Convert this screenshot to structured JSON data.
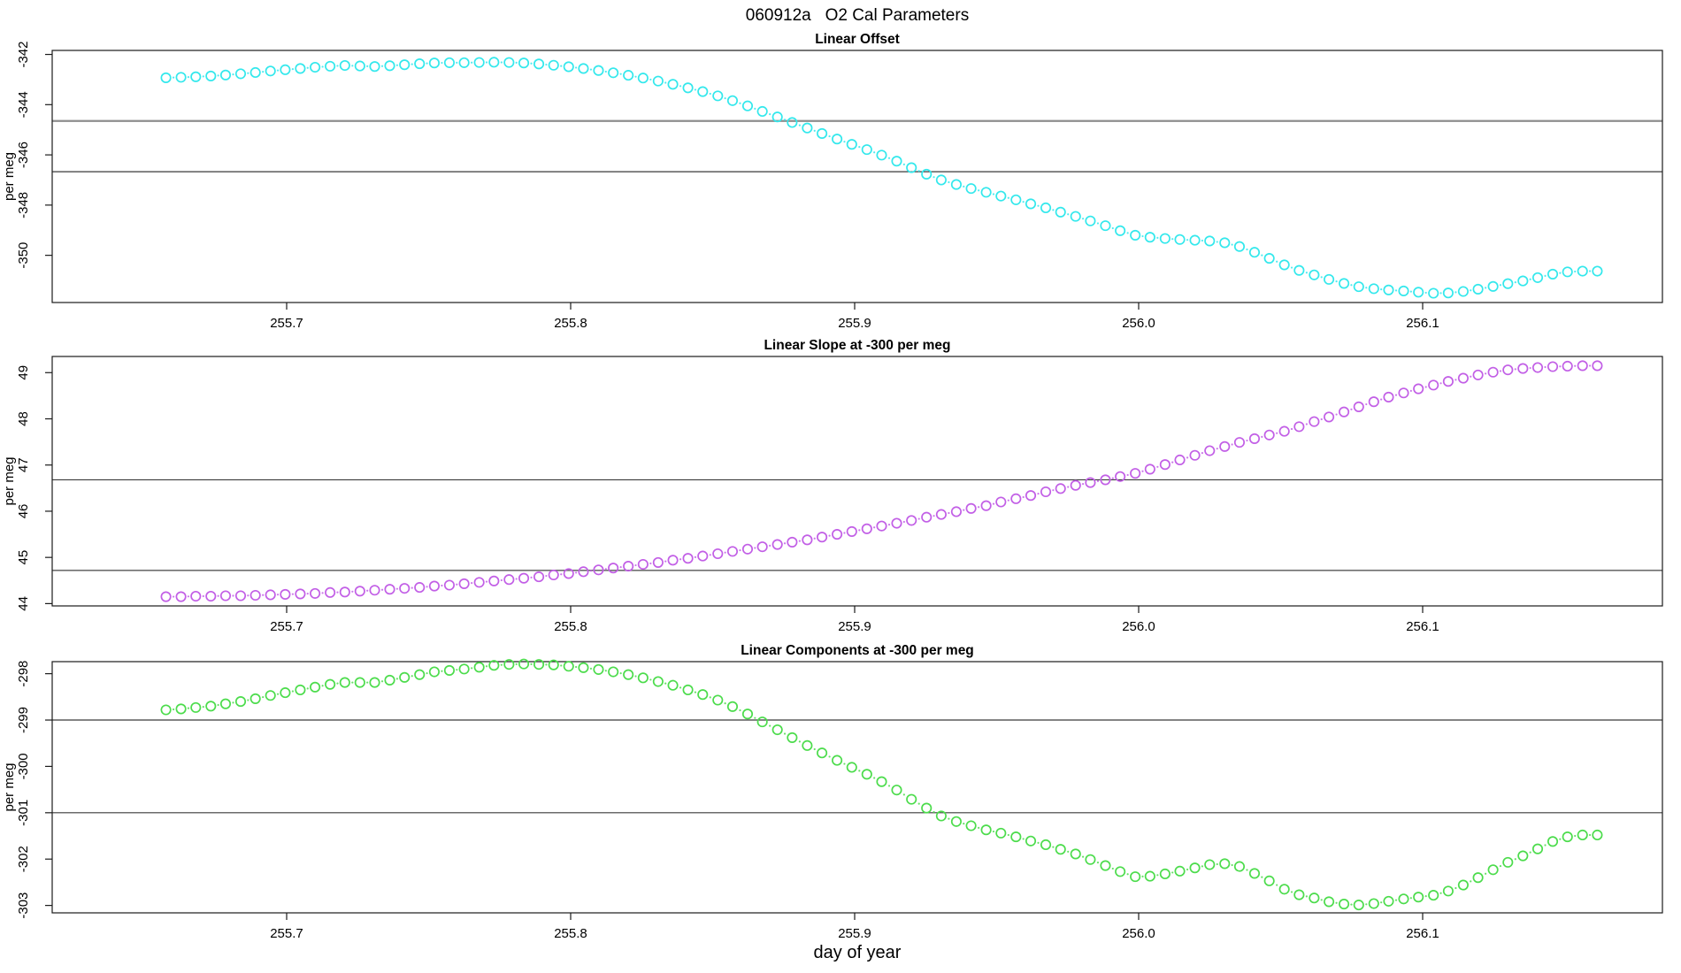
{
  "title": "060912a   O2 Cal Parameters",
  "chart_data": {
    "type": "scatter",
    "subtype": "three-stacked-panels",
    "x_label": "day of year",
    "marker": "open-circle",
    "connector": "dotted",
    "grid": "off",
    "x_ticks": [
      255.7,
      255.8,
      255.9,
      256.0,
      256.1
    ],
    "x_tick_labels": [
      "255.7",
      "255.8",
      "255.9",
      "256.0",
      "256.1"
    ],
    "xlim": [
      255.6175,
      256.1845
    ],
    "x_days": [
      255.6575,
      255.6628,
      255.668,
      255.6733,
      255.6785,
      255.6838,
      255.689,
      255.6943,
      255.6995,
      255.7048,
      255.71,
      255.7153,
      255.7205,
      255.7258,
      255.731,
      255.7363,
      255.7415,
      255.7468,
      255.752,
      255.7573,
      255.7625,
      255.7678,
      255.773,
      255.7783,
      255.7835,
      255.7888,
      255.794,
      255.7993,
      255.8045,
      255.8098,
      255.815,
      255.8203,
      255.8255,
      255.8308,
      255.836,
      255.8413,
      255.8465,
      255.8518,
      255.857,
      255.8623,
      255.8675,
      255.8728,
      255.878,
      255.8833,
      255.8885,
      255.8938,
      255.899,
      255.9043,
      255.9095,
      255.9148,
      255.92,
      255.9253,
      255.9305,
      255.9358,
      255.941,
      255.9463,
      255.9515,
      255.9568,
      255.962,
      255.9673,
      255.9725,
      255.9778,
      255.983,
      255.9883,
      255.9935,
      255.9988,
      256.004,
      256.0093,
      256.0145,
      256.0198,
      256.025,
      256.0303,
      256.0355,
      256.0408,
      256.046,
      256.0513,
      256.0565,
      256.0618,
      256.067,
      256.0723,
      256.0775,
      256.0828,
      256.088,
      256.0933,
      256.0985,
      256.1038,
      256.109,
      256.1143,
      256.1195,
      256.1248,
      256.13,
      256.1353,
      256.1405,
      256.1458,
      256.151,
      256.1563,
      256.1615
    ],
    "panels": [
      {
        "title": "Linear Offset",
        "ylabel": "per meg",
        "point_color": "#33E8EC",
        "y_ticks": [
          -350,
          -348,
          -346,
          -344,
          -342
        ],
        "ylim": [
          -351.88,
          -341.84
        ],
        "ref_lines": [
          {
            "value": -344.65,
            "color": "#8E8E8E",
            "width": 2.2
          },
          {
            "value": -346.67,
            "color": "#3A3A3A",
            "width": 1.2
          }
        ],
        "y_per_meg": [
          -342.93,
          -342.91,
          -342.89,
          -342.86,
          -342.82,
          -342.77,
          -342.72,
          -342.66,
          -342.61,
          -342.56,
          -342.51,
          -342.47,
          -342.44,
          -342.46,
          -342.48,
          -342.45,
          -342.41,
          -342.37,
          -342.34,
          -342.33,
          -342.33,
          -342.32,
          -342.31,
          -342.32,
          -342.34,
          -342.38,
          -342.43,
          -342.49,
          -342.56,
          -342.64,
          -342.73,
          -342.83,
          -342.94,
          -343.06,
          -343.19,
          -343.33,
          -343.48,
          -343.65,
          -343.84,
          -344.05,
          -344.27,
          -344.49,
          -344.71,
          -344.93,
          -345.15,
          -345.37,
          -345.58,
          -345.79,
          -346.01,
          -346.25,
          -346.51,
          -346.77,
          -347.0,
          -347.18,
          -347.34,
          -347.49,
          -347.64,
          -347.79,
          -347.95,
          -348.11,
          -348.28,
          -348.45,
          -348.63,
          -348.82,
          -349.02,
          -349.2,
          -349.28,
          -349.33,
          -349.37,
          -349.4,
          -349.43,
          -349.5,
          -349.65,
          -349.88,
          -350.12,
          -350.38,
          -350.6,
          -350.78,
          -350.96,
          -351.12,
          -351.25,
          -351.33,
          -351.38,
          -351.42,
          -351.47,
          -351.51,
          -351.5,
          -351.44,
          -351.35,
          -351.24,
          -351.13,
          -351.02,
          -350.89,
          -350.75,
          -350.66,
          -350.63,
          -350.63
        ]
      },
      {
        "title": "Linear Slope at -300 per meg",
        "ylabel": "per meg",
        "point_color": "#C25FE6",
        "y_ticks": [
          44,
          45,
          46,
          47,
          48,
          49
        ],
        "ylim": [
          43.95,
          49.35
        ],
        "ref_lines": [
          {
            "value": 46.68,
            "color": "#3A3A3A",
            "width": 1.2
          },
          {
            "value": 44.72,
            "color": "#6F6F6F",
            "width": 1.6
          }
        ],
        "y_per_meg": [
          44.15,
          44.15,
          44.16,
          44.16,
          44.17,
          44.17,
          44.18,
          44.19,
          44.2,
          44.21,
          44.22,
          44.24,
          44.25,
          44.27,
          44.29,
          44.31,
          44.33,
          44.35,
          44.38,
          44.4,
          44.43,
          44.46,
          44.49,
          44.52,
          44.55,
          44.58,
          44.62,
          44.65,
          44.69,
          44.73,
          44.77,
          44.81,
          44.85,
          44.89,
          44.94,
          44.98,
          45.03,
          45.08,
          45.13,
          45.18,
          45.23,
          45.28,
          45.33,
          45.38,
          45.44,
          45.5,
          45.56,
          45.62,
          45.68,
          45.74,
          45.8,
          45.87,
          45.93,
          45.99,
          46.06,
          46.12,
          46.2,
          46.27,
          46.34,
          46.42,
          46.49,
          46.56,
          46.62,
          46.68,
          46.75,
          46.82,
          46.91,
          47.01,
          47.11,
          47.21,
          47.31,
          47.4,
          47.49,
          47.57,
          47.65,
          47.73,
          47.83,
          47.94,
          48.04,
          48.15,
          48.26,
          48.37,
          48.47,
          48.56,
          48.65,
          48.73,
          48.81,
          48.88,
          48.95,
          49.01,
          49.06,
          49.09,
          49.11,
          49.13,
          49.14,
          49.15,
          49.15
        ]
      },
      {
        "title": "Linear Components at -300 per meg",
        "ylabel": "per meg",
        "point_color": "#4CDC4C",
        "y_ticks": [
          -303,
          -302,
          -301,
          -300,
          -299,
          -298
        ],
        "ylim": [
          -303.16,
          -297.74
        ],
        "ref_lines": [
          {
            "value": -299.0,
            "color": "#3A3A3A",
            "width": 1.2
          },
          {
            "value": -301.0,
            "color": "#3A3A3A",
            "width": 1.2
          }
        ],
        "y_per_meg": [
          -298.78,
          -298.76,
          -298.73,
          -298.7,
          -298.65,
          -298.6,
          -298.54,
          -298.47,
          -298.41,
          -298.35,
          -298.29,
          -298.23,
          -298.19,
          -298.19,
          -298.19,
          -298.14,
          -298.08,
          -298.02,
          -297.96,
          -297.93,
          -297.9,
          -297.86,
          -297.82,
          -297.8,
          -297.79,
          -297.8,
          -297.81,
          -297.84,
          -297.87,
          -297.91,
          -297.96,
          -298.02,
          -298.09,
          -298.17,
          -298.25,
          -298.35,
          -298.45,
          -298.57,
          -298.71,
          -298.87,
          -299.04,
          -299.21,
          -299.38,
          -299.55,
          -299.71,
          -299.87,
          -300.02,
          -300.17,
          -300.33,
          -300.51,
          -300.71,
          -300.9,
          -301.07,
          -301.19,
          -301.28,
          -301.37,
          -301.44,
          -301.52,
          -301.61,
          -301.69,
          -301.79,
          -301.89,
          -302.01,
          -302.14,
          -302.27,
          -302.38,
          -302.37,
          -302.32,
          -302.26,
          -302.19,
          -302.12,
          -302.1,
          -302.16,
          -302.31,
          -302.47,
          -302.65,
          -302.77,
          -302.84,
          -302.92,
          -302.97,
          -302.99,
          -302.96,
          -302.91,
          -302.86,
          -302.82,
          -302.78,
          -302.69,
          -302.56,
          -302.4,
          -302.23,
          -302.07,
          -301.93,
          -301.78,
          -301.62,
          -301.52,
          -301.48,
          -301.48
        ]
      }
    ]
  }
}
